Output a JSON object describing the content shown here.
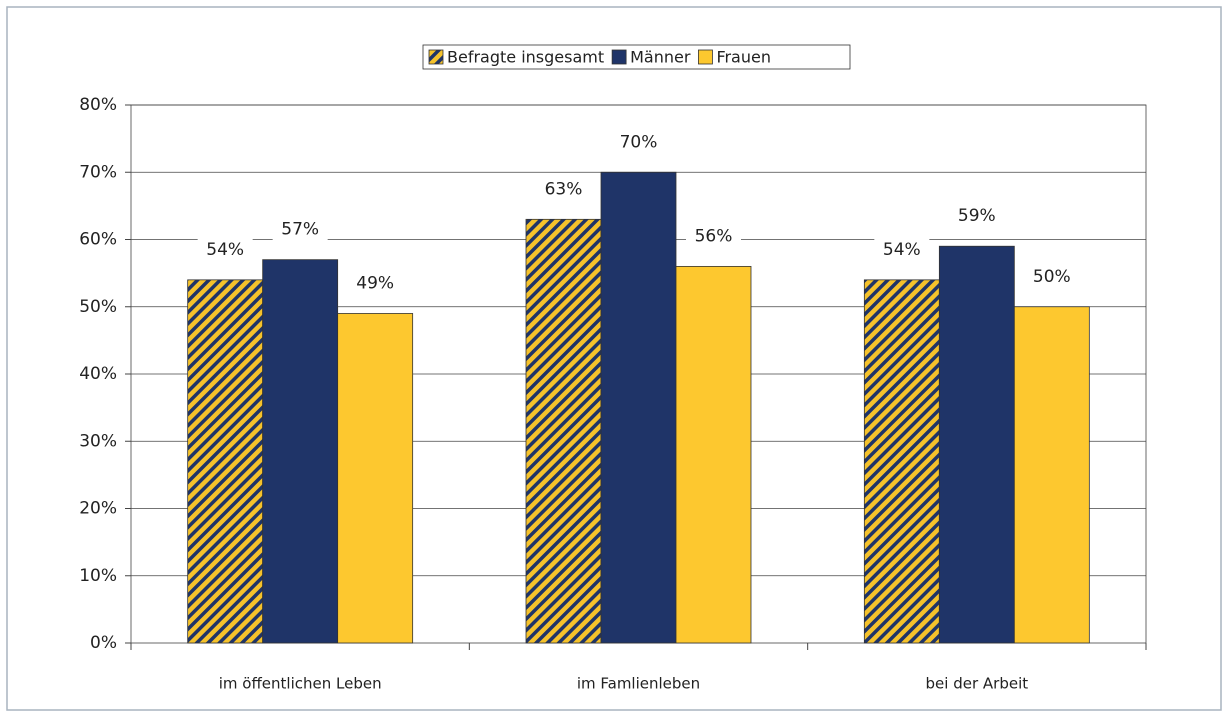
{
  "chart_data": {
    "type": "bar",
    "categories": [
      "im öffentlichen Leben",
      "im Famlienleben",
      "bei der Arbeit"
    ],
    "series": [
      {
        "name": "Befragte insgesamt",
        "color": "#f5c22b",
        "hatch_color": "#1f3468",
        "values": [
          54,
          63,
          54
        ],
        "value_labels": [
          "54%",
          "63%",
          "54%"
        ]
      },
      {
        "name": "Männer",
        "color": "#1f3468",
        "values": [
          57,
          70,
          59
        ],
        "value_labels": [
          "57%",
          "70%",
          "59%"
        ]
      },
      {
        "name": "Frauen",
        "color": "#fdc82f",
        "values": [
          49,
          56,
          50
        ],
        "value_labels": [
          "49%",
          "56%",
          "50%"
        ]
      }
    ],
    "ylim": [
      0,
      80
    ],
    "yticks": [
      {
        "value": 0,
        "label": "0%"
      },
      {
        "value": 10,
        "label": "10%"
      },
      {
        "value": 20,
        "label": "20%"
      },
      {
        "value": 30,
        "label": "30%"
      },
      {
        "value": 40,
        "label": "40%"
      },
      {
        "value": 50,
        "label": "50%"
      },
      {
        "value": 60,
        "label": "60%"
      },
      {
        "value": 70,
        "label": "70%"
      },
      {
        "value": 80,
        "label": "80%"
      }
    ],
    "grid": true,
    "legend": "top"
  }
}
